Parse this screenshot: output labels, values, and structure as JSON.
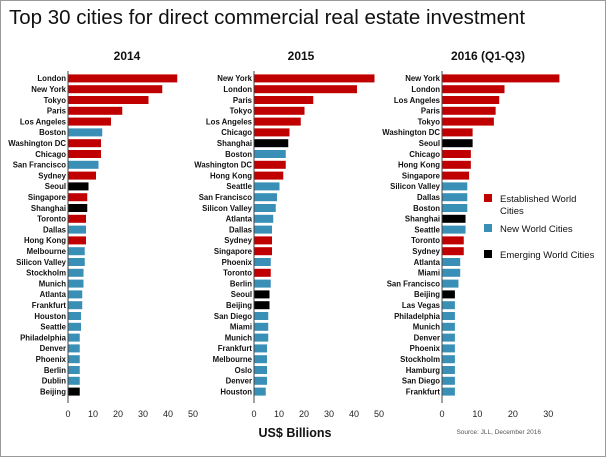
{
  "chart_data": {
    "type": "bar",
    "orientation": "horizontal",
    "title": "Top 30 cities for direct commercial real estate investment",
    "xlabel": "US$ Billions",
    "source": "Source: JLL, December 2016",
    "legend": [
      {
        "key": "established",
        "label": [
          "Established World",
          "Cities"
        ],
        "color": "#c00000"
      },
      {
        "key": "new",
        "label": [
          "New World Cities"
        ],
        "color": "#3a8fb7"
      },
      {
        "key": "emerging",
        "label": [
          "Emerging World Cities"
        ],
        "color": "#000000"
      }
    ],
    "colors": {
      "established": "#c00000",
      "new": "#3a8fb7",
      "emerging": "#000000"
    },
    "panels": [
      {
        "title": "2014",
        "xlim": [
          0,
          50
        ],
        "ticks": [
          0,
          10,
          20,
          30,
          40,
          50
        ],
        "cities": [
          {
            "name": "London",
            "value": 43.5,
            "group": "established"
          },
          {
            "name": "New York",
            "value": 37.5,
            "group": "established"
          },
          {
            "name": "Tokyo",
            "value": 32,
            "group": "established"
          },
          {
            "name": "Paris",
            "value": 21.5,
            "group": "established"
          },
          {
            "name": "Los Angeles",
            "value": 17,
            "group": "established"
          },
          {
            "name": "Boston",
            "value": 13.5,
            "group": "new"
          },
          {
            "name": "Washington DC",
            "value": 13,
            "group": "established"
          },
          {
            "name": "Chicago",
            "value": 13,
            "group": "established"
          },
          {
            "name": "San Francisco",
            "value": 12,
            "group": "new"
          },
          {
            "name": "Sydney",
            "value": 11,
            "group": "established"
          },
          {
            "name": "Seoul",
            "value": 8,
            "group": "emerging"
          },
          {
            "name": "Singapore",
            "value": 7.5,
            "group": "established"
          },
          {
            "name": "Shanghai",
            "value": 7.5,
            "group": "emerging"
          },
          {
            "name": "Toronto",
            "value": 7,
            "group": "established"
          },
          {
            "name": "Dallas",
            "value": 7,
            "group": "new"
          },
          {
            "name": "Hong Kong",
            "value": 7,
            "group": "established"
          },
          {
            "name": "Melbourne",
            "value": 6.5,
            "group": "new"
          },
          {
            "name": "Silicon Valley",
            "value": 6.5,
            "group": "new"
          },
          {
            "name": "Stockholm",
            "value": 6,
            "group": "new"
          },
          {
            "name": "Munich",
            "value": 6,
            "group": "new"
          },
          {
            "name": "Atlanta",
            "value": 5.5,
            "group": "new"
          },
          {
            "name": "Frankfurt",
            "value": 5.5,
            "group": "new"
          },
          {
            "name": "Houston",
            "value": 5,
            "group": "new"
          },
          {
            "name": "Seattle",
            "value": 5,
            "group": "new"
          },
          {
            "name": "Philadelphia",
            "value": 4.5,
            "group": "new"
          },
          {
            "name": "Denver",
            "value": 4.5,
            "group": "new"
          },
          {
            "name": "Phoenix",
            "value": 4.5,
            "group": "new"
          },
          {
            "name": "Berlin",
            "value": 4.5,
            "group": "new"
          },
          {
            "name": "Dublin",
            "value": 4.5,
            "group": "new"
          },
          {
            "name": "Beijing",
            "value": 4.5,
            "group": "emerging"
          }
        ]
      },
      {
        "title": "2015",
        "xlim": [
          0,
          50
        ],
        "ticks": [
          0,
          10,
          20,
          30,
          40,
          50
        ],
        "cities": [
          {
            "name": "New York",
            "value": 48,
            "group": "established"
          },
          {
            "name": "London",
            "value": 41,
            "group": "established"
          },
          {
            "name": "Paris",
            "value": 23.5,
            "group": "established"
          },
          {
            "name": "Tokyo",
            "value": 20,
            "group": "established"
          },
          {
            "name": "Los Angeles",
            "value": 18.5,
            "group": "established"
          },
          {
            "name": "Chicago",
            "value": 14,
            "group": "established"
          },
          {
            "name": "Shanghai",
            "value": 13.5,
            "group": "emerging"
          },
          {
            "name": "Boston",
            "value": 12.5,
            "group": "new"
          },
          {
            "name": "Washington DC",
            "value": 12.5,
            "group": "established"
          },
          {
            "name": "Hong Kong",
            "value": 11.5,
            "group": "established"
          },
          {
            "name": "Seattle",
            "value": 10,
            "group": "new"
          },
          {
            "name": "San Francisco",
            "value": 9,
            "group": "new"
          },
          {
            "name": "Silicon Valley",
            "value": 8.5,
            "group": "new"
          },
          {
            "name": "Atlanta",
            "value": 7.5,
            "group": "new"
          },
          {
            "name": "Dallas",
            "value": 7,
            "group": "new"
          },
          {
            "name": "Sydney",
            "value": 7,
            "group": "established"
          },
          {
            "name": "Singapore",
            "value": 7,
            "group": "established"
          },
          {
            "name": "Phoenix",
            "value": 6.5,
            "group": "new"
          },
          {
            "name": "Toronto",
            "value": 6.5,
            "group": "established"
          },
          {
            "name": "Berlin",
            "value": 6.5,
            "group": "new"
          },
          {
            "name": "Seoul",
            "value": 6,
            "group": "emerging"
          },
          {
            "name": "Beijing",
            "value": 6,
            "group": "emerging"
          },
          {
            "name": "San Diego",
            "value": 5.5,
            "group": "new"
          },
          {
            "name": "Miami",
            "value": 5.5,
            "group": "new"
          },
          {
            "name": "Munich",
            "value": 5.5,
            "group": "new"
          },
          {
            "name": "Frankfurt",
            "value": 5,
            "group": "new"
          },
          {
            "name": "Melbourne",
            "value": 5,
            "group": "new"
          },
          {
            "name": "Oslo",
            "value": 5,
            "group": "new"
          },
          {
            "name": "Denver",
            "value": 5,
            "group": "new"
          },
          {
            "name": "Houston",
            "value": 4.5,
            "group": "new"
          }
        ]
      },
      {
        "title": "2016 (Q1-Q3)",
        "xlim": [
          0,
          35
        ],
        "ticks": [
          0,
          10,
          20,
          30
        ],
        "cities": [
          {
            "name": "New York",
            "value": 33,
            "group": "established"
          },
          {
            "name": "London",
            "value": 17.5,
            "group": "established"
          },
          {
            "name": "Los Angeles",
            "value": 16,
            "group": "established"
          },
          {
            "name": "Paris",
            "value": 15,
            "group": "established"
          },
          {
            "name": "Tokyo",
            "value": 14.5,
            "group": "established"
          },
          {
            "name": "Washington DC",
            "value": 8.5,
            "group": "established"
          },
          {
            "name": "Seoul",
            "value": 8.5,
            "group": "emerging"
          },
          {
            "name": "Chicago",
            "value": 8,
            "group": "established"
          },
          {
            "name": "Hong Kong",
            "value": 8,
            "group": "established"
          },
          {
            "name": "Singapore",
            "value": 7.5,
            "group": "established"
          },
          {
            "name": "Silicon Valley",
            "value": 7,
            "group": "new"
          },
          {
            "name": "Dallas",
            "value": 7,
            "group": "new"
          },
          {
            "name": "Boston",
            "value": 7,
            "group": "new"
          },
          {
            "name": "Shanghai",
            "value": 6.5,
            "group": "emerging"
          },
          {
            "name": "Seattle",
            "value": 6.5,
            "group": "new"
          },
          {
            "name": "Toronto",
            "value": 6,
            "group": "established"
          },
          {
            "name": "Sydney",
            "value": 6,
            "group": "established"
          },
          {
            "name": "Atlanta",
            "value": 5,
            "group": "new"
          },
          {
            "name": "Miami",
            "value": 5,
            "group": "new"
          },
          {
            "name": "San Francisco",
            "value": 4.5,
            "group": "new"
          },
          {
            "name": "Beijing",
            "value": 3.5,
            "group": "emerging"
          },
          {
            "name": "Las Vegas",
            "value": 3.5,
            "group": "new"
          },
          {
            "name": "Philadelphia",
            "value": 3.5,
            "group": "new"
          },
          {
            "name": "Munich",
            "value": 3.5,
            "group": "new"
          },
          {
            "name": "Denver",
            "value": 3.5,
            "group": "new"
          },
          {
            "name": "Phoenix",
            "value": 3.5,
            "group": "new"
          },
          {
            "name": "Stockholm",
            "value": 3.5,
            "group": "new"
          },
          {
            "name": "Hamburg",
            "value": 3.5,
            "group": "new"
          },
          {
            "name": "San Diego",
            "value": 3.5,
            "group": "new"
          },
          {
            "name": "Frankfurt",
            "value": 3.5,
            "group": "new"
          }
        ]
      }
    ]
  }
}
